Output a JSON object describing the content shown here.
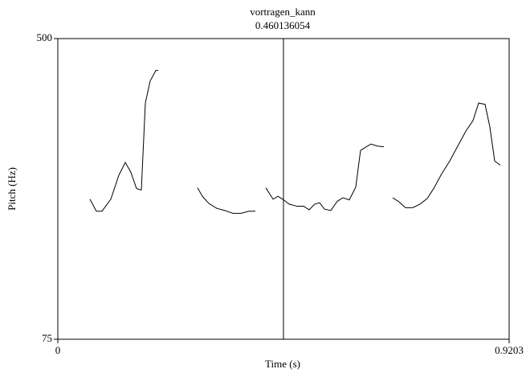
{
  "chart_data": {
    "type": "line",
    "title": "vortragen_kann",
    "cursor": 0.460136054,
    "x_label": "Time (s)",
    "y_label": "Pitch (Hz)",
    "color": "#000000",
    "xlim": [
      0,
      0.9203
    ],
    "ylim": [
      75,
      500
    ],
    "xticks": [
      0,
      0.9203
    ],
    "yticks": [
      75,
      500
    ],
    "x": [
      0.0655,
      0.0786,
      0.0901,
      0.1081,
      0.1245,
      0.1376,
      0.149,
      0.1605,
      0.1703,
      0.1785,
      0.1883,
      0.1998,
      0.2047,
      null,
      0.2849,
      0.2948,
      0.3079,
      0.3242,
      0.3406,
      0.357,
      0.3734,
      0.3897,
      0.4028,
      null,
      0.4241,
      0.4389,
      0.4487,
      0.4585,
      0.4716,
      0.488,
      0.5011,
      0.5125,
      0.524,
      0.5338,
      0.5436,
      0.5567,
      0.5698,
      0.5813,
      0.5944,
      0.6075,
      0.6173,
      0.6288,
      0.6386,
      0.6517,
      0.6648,
      null,
      0.6828,
      0.6943,
      0.709,
      0.7238,
      0.7385,
      0.7533,
      0.7664,
      0.7828,
      0.7992,
      0.8155,
      0.8319,
      0.8466,
      0.8581,
      0.8712,
      0.881,
      0.8908,
      0.9023
    ],
    "values": [
      273,
      256,
      256,
      273,
      307,
      325,
      311,
      288,
      286,
      409,
      440,
      455,
      455,
      null,
      289,
      277,
      267,
      260,
      257,
      253,
      253,
      256,
      256,
      null,
      289,
      273,
      277,
      273,
      266,
      263,
      263,
      258,
      266,
      268,
      259,
      257,
      270,
      275,
      272,
      290,
      342,
      347,
      351,
      348,
      347,
      null,
      275,
      270,
      261,
      261,
      266,
      274,
      288,
      309,
      327,
      348,
      369,
      384,
      409,
      407,
      375,
      327,
      321
    ]
  }
}
